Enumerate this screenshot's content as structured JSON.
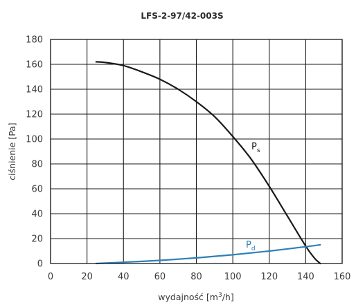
{
  "chart_data": {
    "type": "line",
    "title": "LFS-2-97/42-003S",
    "xlabel": "wydajność [m",
    "xlabel_sup": "3",
    "xlabel_end": "/h]",
    "ylabel": "ciśnienie [Pa]",
    "xlim": [
      0,
      160
    ],
    "ylim": [
      0,
      180
    ],
    "xticks": [
      0,
      20,
      40,
      60,
      80,
      100,
      120,
      140,
      160
    ],
    "yticks": [
      0,
      20,
      40,
      60,
      80,
      100,
      120,
      140,
      160,
      180
    ],
    "grid": true,
    "series": [
      {
        "name": "P",
        "name_sub": "s",
        "color": "#1a1a1a",
        "x": [
          25,
          30,
          40,
          50,
          60,
          70,
          80,
          90,
          100,
          110,
          120,
          130,
          140,
          145,
          148
        ],
        "y": [
          162,
          161.5,
          159,
          154,
          148,
          140,
          130,
          118,
          102,
          84,
          62,
          38,
          14,
          4,
          0
        ]
      },
      {
        "name": "P",
        "name_sub": "d",
        "color": "#2e7fb8",
        "x": [
          25,
          40,
          60,
          80,
          100,
          120,
          140,
          148
        ],
        "y": [
          0,
          1,
          2.5,
          4.5,
          7,
          10,
          13.5,
          15
        ]
      }
    ]
  }
}
